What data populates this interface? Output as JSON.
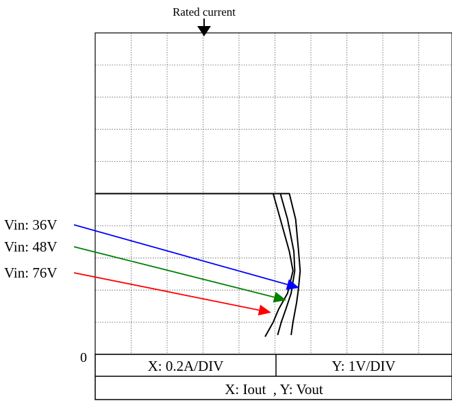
{
  "chart_data": {
    "type": "line",
    "title": "Rated current",
    "origin_label": "0",
    "x_scale_label": "X: 0.2A/DIV",
    "y_scale_label": "Y: 1V/DIV",
    "axes_label": "X: Iout  , Y: Vout",
    "xlim": [
      0,
      2.0
    ],
    "ylim": [
      0,
      10
    ],
    "grid": true,
    "grid_divisions": {
      "x": 10,
      "y": 10
    },
    "rated_current_x": 0.6,
    "series": [
      {
        "name": "Vin: 36V",
        "color": "#0000ff",
        "points": [
          [
            0,
            5.0
          ],
          [
            1.08,
            5.0
          ],
          [
            1.115,
            4.2
          ],
          [
            1.13,
            3.3
          ],
          [
            1.14,
            2.6
          ],
          [
            1.13,
            2.0
          ],
          [
            1.12,
            1.6
          ],
          [
            1.1,
            1.0
          ],
          [
            1.09,
            0.6
          ]
        ]
      },
      {
        "name": "Vin: 48V",
        "color": "#008000",
        "points": [
          [
            0,
            5.0
          ],
          [
            1.03,
            5.0
          ],
          [
            1.07,
            4.2
          ],
          [
            1.105,
            3.2
          ],
          [
            1.11,
            2.6
          ],
          [
            1.09,
            1.9
          ],
          [
            1.06,
            1.4
          ],
          [
            1.035,
            1.0
          ],
          [
            1.015,
            0.6
          ]
        ]
      },
      {
        "name": "Vin: 76V",
        "color": "#ff0000",
        "points": [
          [
            0,
            5.0
          ],
          [
            0.99,
            5.0
          ],
          [
            1.03,
            4.2
          ],
          [
            1.08,
            3.2
          ],
          [
            1.1,
            2.6
          ],
          [
            1.07,
            1.9
          ],
          [
            1.02,
            1.4
          ],
          [
            0.99,
            1.0
          ],
          [
            0.945,
            0.55
          ]
        ]
      }
    ]
  }
}
